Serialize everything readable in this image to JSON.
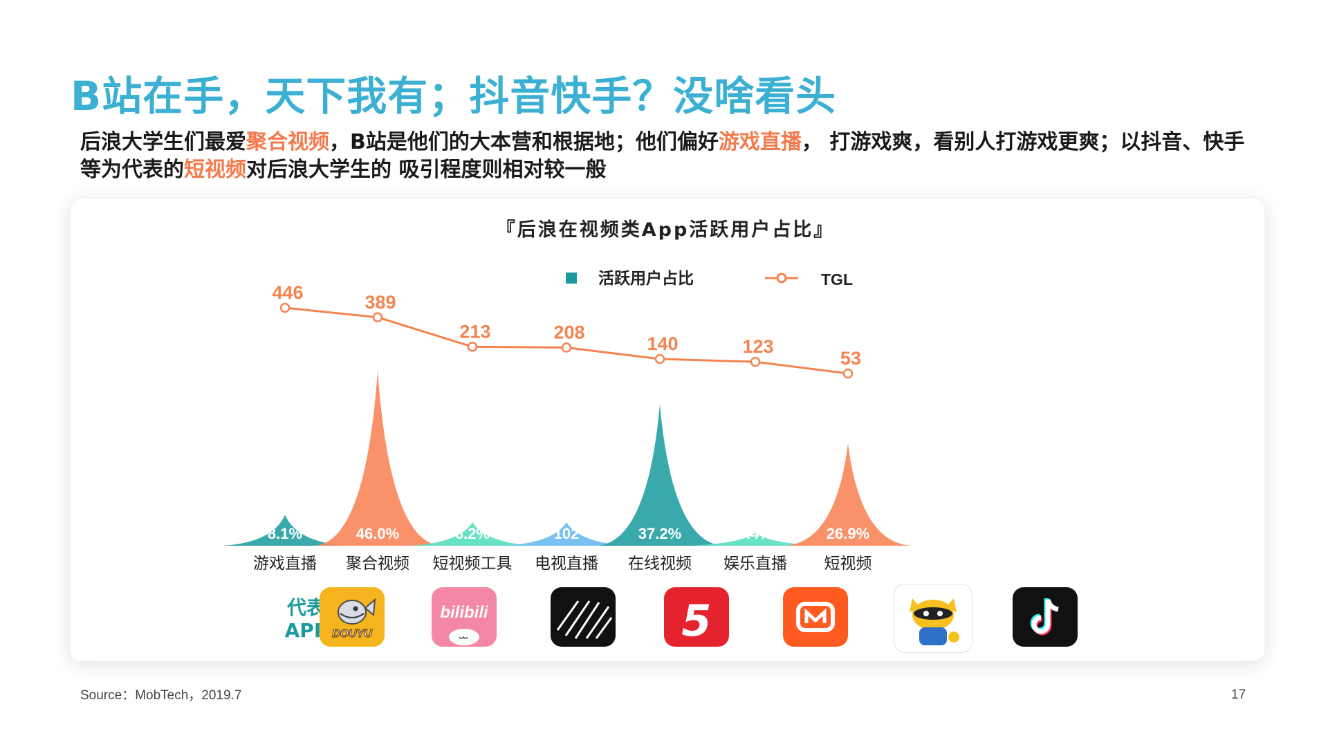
{
  "page": {
    "title": "B站在手，天下我有；抖音快手？没啥看头",
    "subtitle": {
      "p1": "后浪大学生们最爱",
      "h1": "聚合视频",
      "p2": "，B站是他们的大本营和根据地；他们偏好",
      "h2": "游戏直播",
      "p3": "， 打游戏爽，看别人打游戏更爽；以抖音、快手等为代表的",
      "h3": "短视频",
      "p4": "对后浪大学生的 吸引程度则相对较一般"
    },
    "source": "Source：MobTech，2019.7",
    "page_number": "17",
    "rep_label_1": "代表",
    "rep_label_2": "APP"
  },
  "apps": [
    {
      "category": "游戏直播",
      "icon": "douyu-icon",
      "logo_text": "DOUYU"
    },
    {
      "category": "聚合视频",
      "icon": "bilibili-icon",
      "logo_text": "bilibili"
    },
    {
      "category": "短视频工具",
      "icon": "video-tool-icon",
      "logo_text": ""
    },
    {
      "category": "电视直播",
      "icon": "tv-live-icon",
      "logo_text": "5"
    },
    {
      "category": "在线视频",
      "icon": "mango-tv-icon",
      "logo_text": ""
    },
    {
      "category": "娱乐直播",
      "icon": "raccoon-icon",
      "logo_text": ""
    },
    {
      "category": "短视频",
      "icon": "tiktok-icon",
      "logo_text": ""
    }
  ],
  "colors": {
    "title": "#3bb0d3",
    "highlight": "#f47a4c",
    "teal": "#2aa3a6",
    "orange": "#f98a60",
    "mint": "#5de0c0",
    "sky": "#6fbcf0",
    "tgl_line": "#f4844e"
  },
  "chart_data": {
    "type": "area",
    "title": "『后浪在视频类App活跃用户占比』",
    "categories": [
      "游戏直播",
      "聚合视频",
      "短视频工具",
      "电视直播",
      "在线视频",
      "娱乐直播",
      "短视频"
    ],
    "legend": {
      "placement": "top-center"
    },
    "series": [
      {
        "name": "活跃用户占比",
        "kind": "peaks",
        "values": [
          8.1,
          46.0,
          6.2,
          102,
          37.2,
          3.4,
          26.9
        ],
        "labels": [
          "8.1%",
          "46.0%",
          "6.2%",
          "102",
          "37.2%",
          "3.4%",
          "26.9%"
        ],
        "colors": [
          "#2aa3a6",
          "#f98a60",
          "#5de0c0",
          "#6fbcf0",
          "#2aa3a6",
          "#5de0c0",
          "#f98a60"
        ]
      },
      {
        "name": "TGL",
        "kind": "line",
        "values": [
          446,
          389,
          213,
          208,
          140,
          123,
          53
        ]
      }
    ],
    "grid": false
  }
}
